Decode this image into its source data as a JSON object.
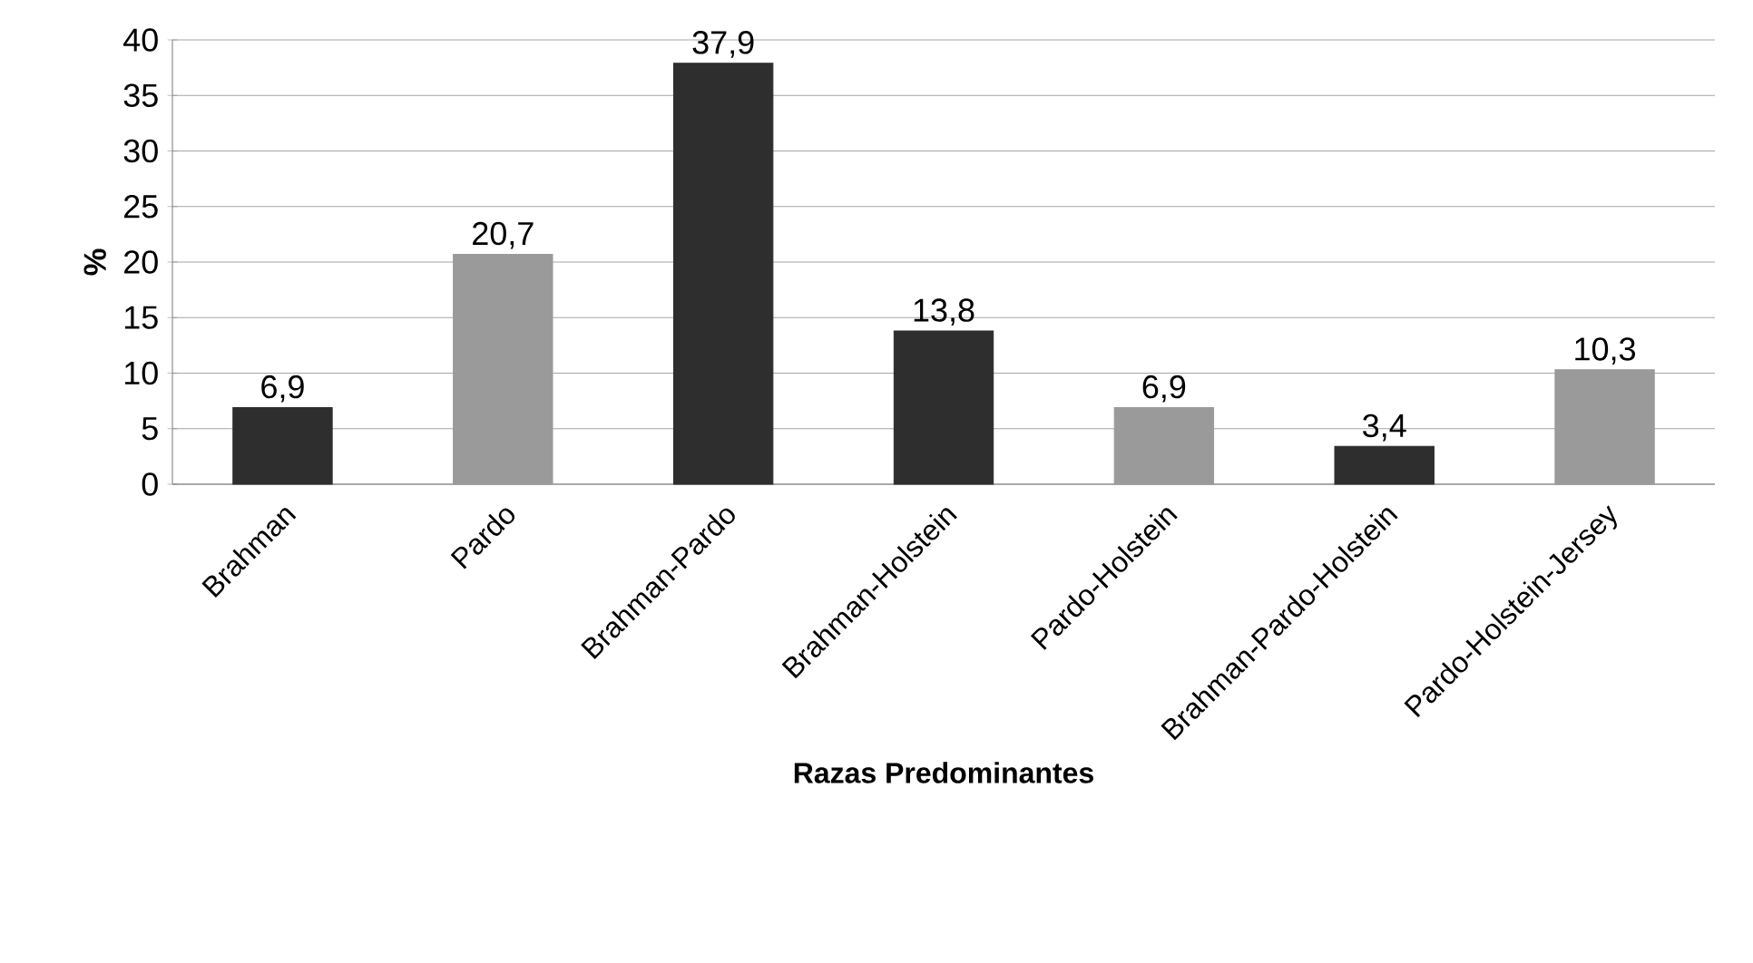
{
  "chart_data": {
    "type": "bar",
    "xlabel": "Razas Predominantes",
    "ylabel": "%",
    "categories": [
      "Brahman",
      "Pardo",
      "Brahman-Pardo",
      "Brahman-Holstein",
      "Pardo-Holstein",
      "Brahman-Pardo-Holstein",
      "Pardo-Holstein-Jersey"
    ],
    "values": [
      6.9,
      20.7,
      37.9,
      13.8,
      6.9,
      3.4,
      10.3
    ],
    "value_labels": [
      "6,9",
      "20,7",
      "37,9",
      "13,8",
      "6,9",
      "3,4",
      "10,3"
    ],
    "colors": [
      "#2e2e2e",
      "#9a9a9a",
      "#2e2e2e",
      "#2e2e2e",
      "#9a9a9a",
      "#2e2e2e",
      "#9a9a9a"
    ],
    "ylim": [
      0,
      40
    ],
    "yticks": [
      0,
      5,
      10,
      15,
      20,
      25,
      30,
      35,
      40
    ],
    "grid": "y"
  }
}
